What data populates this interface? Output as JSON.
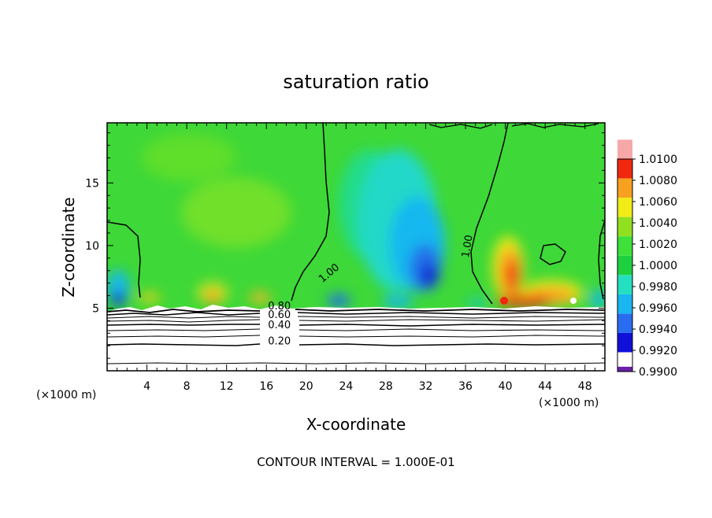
{
  "chart_data": {
    "type": "heatmap",
    "title": "saturation ratio",
    "xlabel": "X-coordinate",
    "ylabel": "Z-coordinate",
    "x_units": "(×1000 m)",
    "y_units": "(×1000 m)",
    "xlim": [
      0,
      50
    ],
    "ylim": [
      0,
      19.8
    ],
    "x_ticks": [
      4,
      8,
      12,
      16,
      20,
      24,
      28,
      32,
      36,
      40,
      44,
      48
    ],
    "y_ticks": [
      5,
      10,
      15
    ],
    "colorbar": {
      "min": 0.99,
      "max": 1.01,
      "ticks": [
        "0.9900",
        "0.9920",
        "0.9940",
        "0.9960",
        "0.9980",
        "1.0000",
        "1.0020",
        "1.0040",
        "1.0060",
        "1.0080",
        "1.0100"
      ],
      "colors": [
        "#6a1fa8",
        "#1010d8",
        "#2a6cf0",
        "#19b6f0",
        "#24e0c0",
        "#1ed040",
        "#3ee03a",
        "#90e020",
        "#f0ec18",
        "#f8a020",
        "#f02810",
        "#f6a8a8"
      ]
    },
    "contour_labels": [
      {
        "text": "1.00",
        "x": 22.5,
        "z": 7.6
      },
      {
        "text": "1.00",
        "x": 36.5,
        "z": 9.9
      },
      {
        "text": "0.80",
        "x": 17.3,
        "z": 4.9
      },
      {
        "text": "0.60",
        "x": 17.3,
        "z": 4.2
      },
      {
        "text": "0.40",
        "x": 17.3,
        "z": 3.4
      },
      {
        "text": "0.20",
        "x": 17.3,
        "z": 2.1
      }
    ],
    "contour_interval_text": "CONTOUR INTERVAL = 1.000E-01"
  }
}
